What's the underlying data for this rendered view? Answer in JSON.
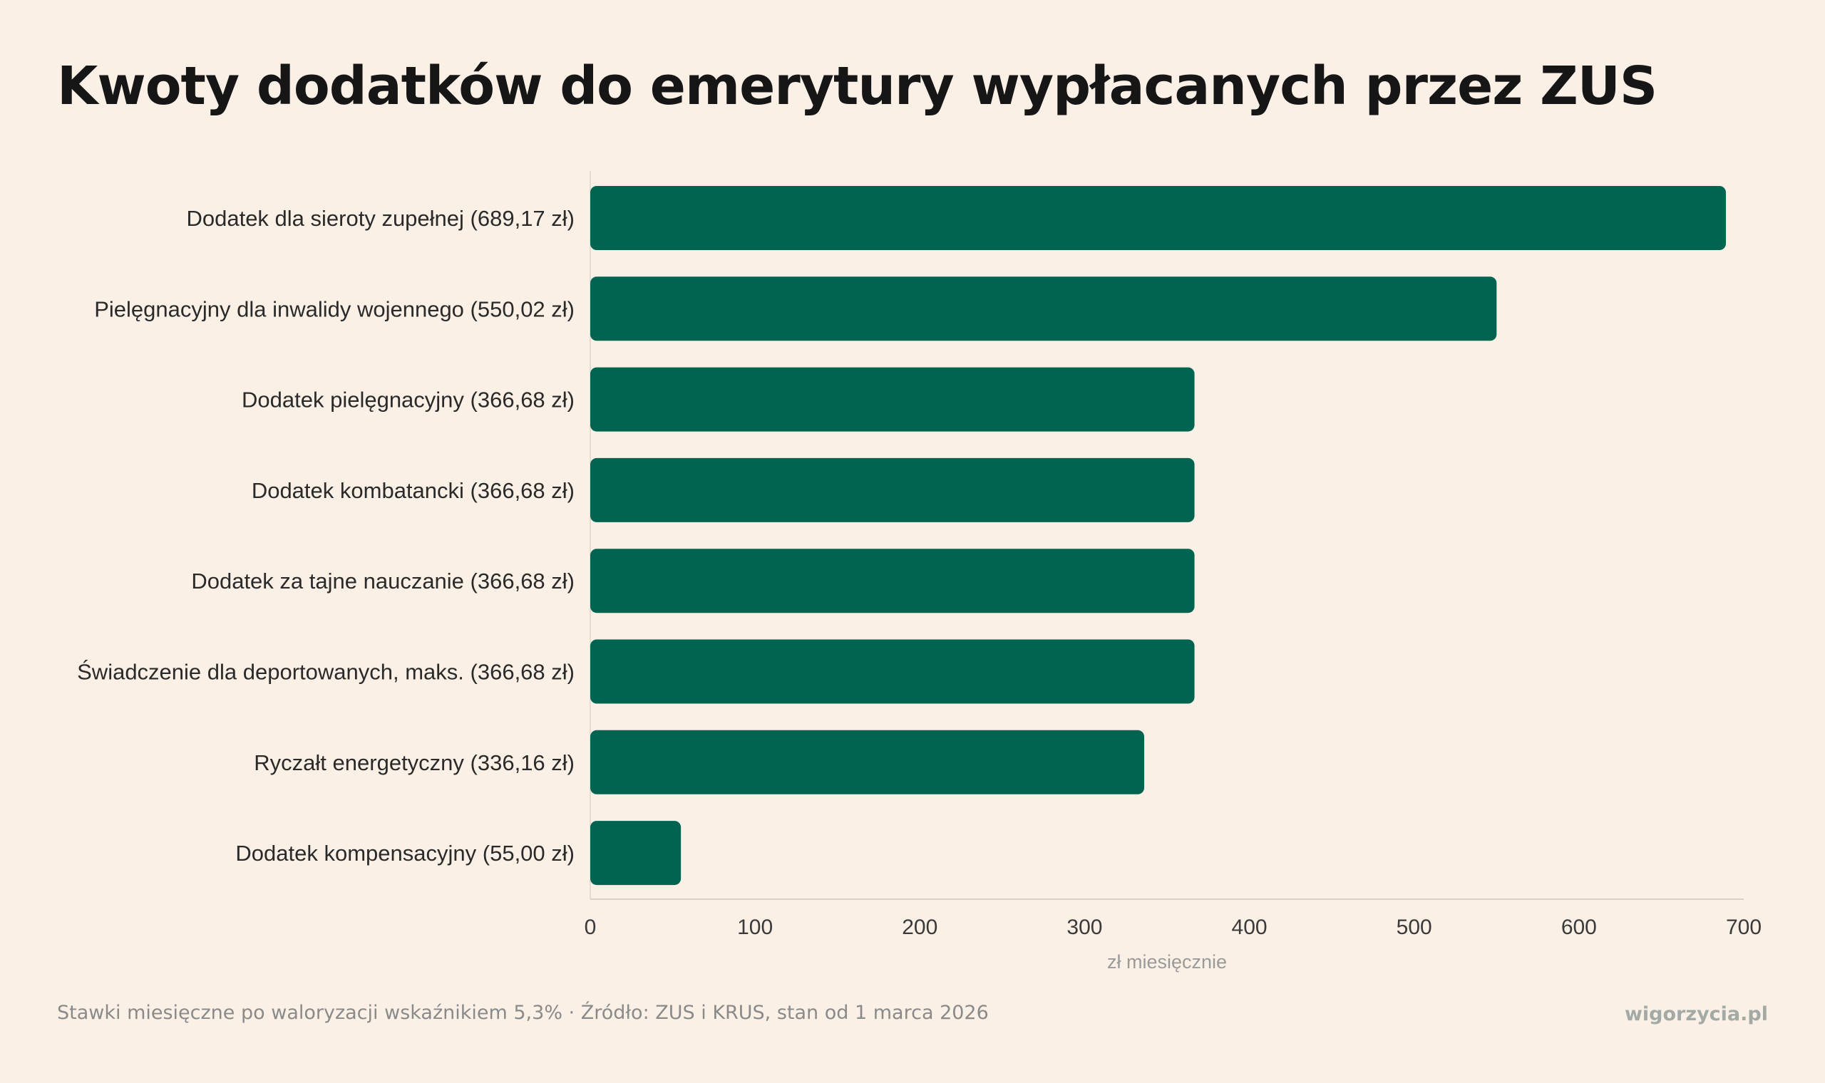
{
  "title": "Kwoty dodatków do emerytury wypłacanych przez ZUS",
  "footer": {
    "note": "Stawki miesięczne po waloryzacji wskaźnikiem 5,3% · Źródło: ZUS i KRUS, stan od 1 marca 2026",
    "brand": "wigorzycia.pl"
  },
  "colors": {
    "bar": "#006450",
    "background": "#faf0e6"
  },
  "chart_data": {
    "type": "bar",
    "orientation": "horizontal",
    "categories": [
      "Dodatek dla sieroty zupełnej (689,17 zł)",
      "Pielęgnacyjny dla inwalidy wojennego (550,02 zł)",
      "Dodatek pielęgnacyjny (366,68 zł)",
      "Dodatek kombatancki (366,68 zł)",
      "Dodatek za tajne nauczanie (366,68 zł)",
      "Świadczenie dla deportowanych, maks. (366,68 zł)",
      "Ryczałt energetyczny (336,16 zł)",
      "Dodatek kompensacyjny (55,00 zł)"
    ],
    "values": [
      689.17,
      550.02,
      366.68,
      366.68,
      366.68,
      366.68,
      336.16,
      55.0
    ],
    "xlabel": "zł miesięcznie",
    "ylabel": "",
    "xlim": [
      0,
      700
    ],
    "xticks": [
      "0",
      "100",
      "200",
      "300",
      "400",
      "500",
      "600",
      "700"
    ],
    "grid": false
  }
}
